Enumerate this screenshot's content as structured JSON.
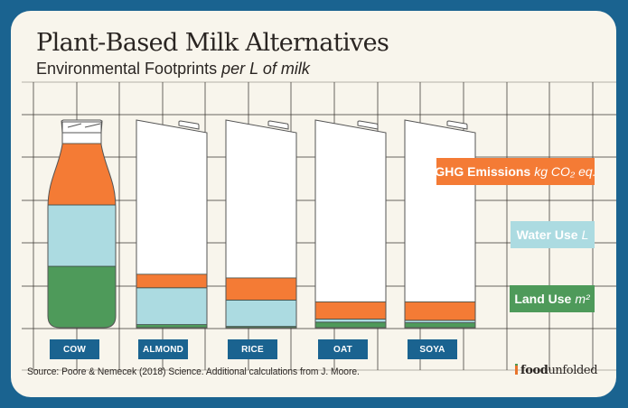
{
  "chart_data": {
    "type": "bar",
    "subtype": "stacked-pictogram",
    "title": "Plant-Based Milk Alternatives",
    "subtitle": "Environmental Footprints",
    "subtitle_italic": "per L of milk",
    "categories": [
      "COW",
      "ALMOND",
      "RICE",
      "OAT",
      "SOYA"
    ],
    "container_shapes": [
      "bottle",
      "carton",
      "carton",
      "carton",
      "carton"
    ],
    "fill_scale_note": "Each metric occupies an equal third of the container height; values shown as fraction of the cow value per metric",
    "series": [
      {
        "name": "Land Use",
        "unit": "m²",
        "key": "land",
        "color": "#4e9a5a",
        "values": [
          1.0,
          0.05,
          0.02,
          0.09,
          0.08
        ]
      },
      {
        "name": "Water Use",
        "unit": "L",
        "key": "water",
        "color": "#acdbe1",
        "values": [
          1.0,
          0.6,
          0.43,
          0.05,
          0.04
        ]
      },
      {
        "name": "GHG Emissions",
        "unit": "kg CO₂ eq.",
        "key": "ghg",
        "color": "#f47b35",
        "values": [
          1.0,
          0.22,
          0.36,
          0.28,
          0.3
        ]
      }
    ],
    "legend": "right",
    "grid": true
  },
  "legend": {
    "ghg": {
      "label": "GHG Emissions",
      "unit": "kg CO₂ eq."
    },
    "water": {
      "label": "Water Use",
      "unit": "L"
    },
    "land": {
      "label": "Land Use",
      "unit": "m²"
    }
  },
  "footer": {
    "source": "Source: Poore & Nemecek (2018) Science. Additional calculations from J. Moore.",
    "logo_bold": "food",
    "logo_regular": "unfolded"
  },
  "colors": {
    "frame": "#1a6390",
    "card": "#f8f5ec",
    "ghg": "#f47b35",
    "water": "#acdbe1",
    "land": "#4e9a5a",
    "label_bg": "#1a6390"
  }
}
